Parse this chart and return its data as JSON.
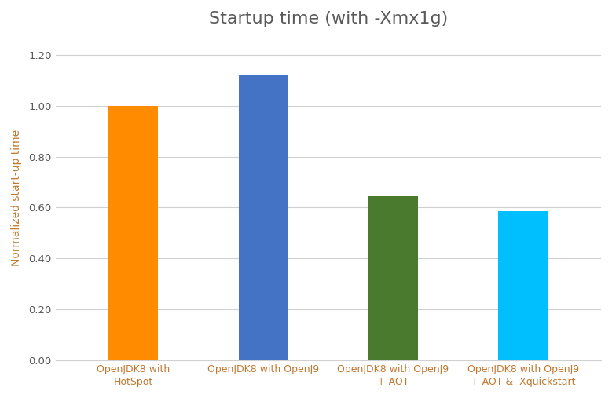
{
  "title": "Startup time (with -Xmx1g)",
  "categories": [
    "OpenJDK8 with\nHotSpot",
    "OpenJDK8 with OpenJ9",
    "OpenJDK8 with OpenJ9\n+ AOT",
    "OpenJDK8 with OpenJ9\n+ AOT & -Xquickstart"
  ],
  "values": [
    1.0,
    1.12,
    0.645,
    0.585
  ],
  "bar_colors": [
    "#FF8C00",
    "#4472C4",
    "#4A7A2E",
    "#00BFFF"
  ],
  "ylabel": "Normalized start-up time",
  "ylim": [
    0,
    1.28
  ],
  "yticks": [
    0.0,
    0.2,
    0.4,
    0.6,
    0.8,
    1.0,
    1.2
  ],
  "title_fontsize": 16,
  "label_fontsize": 10,
  "tick_fontsize": 9.5,
  "xtick_fontsize": 9,
  "background_color": "#FFFFFF",
  "grid_color": "#D0D0D0",
  "text_color": "#595959",
  "label_color": "#C07830"
}
